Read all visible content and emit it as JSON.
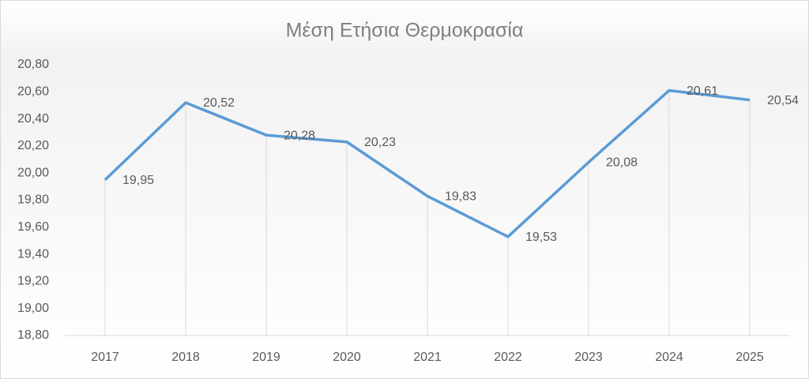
{
  "chart_data": {
    "type": "line",
    "title": "Μέση Ετήσια Θερμοκρασία",
    "categories": [
      "2017",
      "2018",
      "2019",
      "2020",
      "2021",
      "2022",
      "2023",
      "2024",
      "2025"
    ],
    "values": [
      19.95,
      20.52,
      20.28,
      20.23,
      19.83,
      19.53,
      20.08,
      20.61,
      20.54
    ],
    "value_labels": [
      "19,95",
      "20,52",
      "20,28",
      "20,23",
      "19,83",
      "19,53",
      "20,08",
      "20,61",
      "20,54"
    ],
    "color": "#5b9bd5",
    "ylim": [
      18.8,
      20.8
    ],
    "yticks": [
      {
        "value": 18.8,
        "label": "18,80"
      },
      {
        "value": 19.0,
        "label": "19,00"
      },
      {
        "value": 19.2,
        "label": "19,20"
      },
      {
        "value": 19.4,
        "label": "19,40"
      },
      {
        "value": 19.6,
        "label": "19,60"
      },
      {
        "value": 19.8,
        "label": "19,80"
      },
      {
        "value": 20.0,
        "label": "20,00"
      },
      {
        "value": 20.2,
        "label": "20,20"
      },
      {
        "value": 20.4,
        "label": "20,40"
      },
      {
        "value": 20.6,
        "label": "20,60"
      },
      {
        "value": 20.8,
        "label": "20,80"
      }
    ],
    "drop_lines": true
  }
}
